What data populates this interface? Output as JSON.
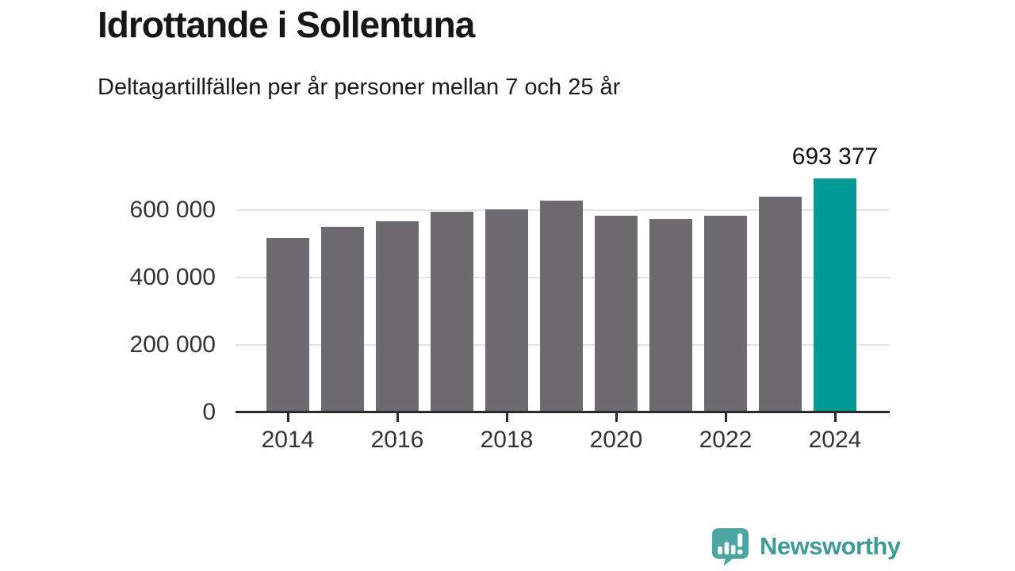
{
  "header": {
    "title": "Idrottande i Sollentuna",
    "subtitle": "Deltagartillfällen per år personer mellan 7 och 25 år"
  },
  "chart_data": {
    "type": "bar",
    "title": "Idrottande i Sollentuna",
    "subtitle": "Deltagartillfällen per år personer mellan 7 och 25 år",
    "categories": [
      "2014",
      "2015",
      "2016",
      "2017",
      "2018",
      "2019",
      "2020",
      "2021",
      "2022",
      "2023",
      "2024"
    ],
    "values": [
      516000,
      550000,
      565000,
      595000,
      602000,
      628000,
      583000,
      574000,
      583000,
      639000,
      693377
    ],
    "highlight": {
      "category": "2024",
      "value": 693377,
      "label": "693 377"
    },
    "y_axis": {
      "ticks": [
        {
          "value": 0,
          "label": "0"
        },
        {
          "value": 200000,
          "label": "200 000"
        },
        {
          "value": 400000,
          "label": "400 000"
        },
        {
          "value": 600000,
          "label": "600 000"
        }
      ],
      "range": [
        0,
        700000
      ]
    },
    "x_axis": {
      "tick_labels": [
        "2014",
        "2016",
        "2018",
        "2020",
        "2022",
        "2024"
      ]
    },
    "grid": true,
    "legend": "none",
    "colors": {
      "bar": "#6d6a70",
      "highlight": "#009a94",
      "gridline": "#e4e4e4",
      "axis": "#2b2b2b",
      "tick_text": "#333333",
      "annotation_text": "#111111"
    }
  },
  "footer": {
    "brand": "Newsworthy",
    "brand_color": "#3e9c96",
    "logo_icon": "newsworthy-bar-chart-bubble-icon",
    "logo_color": "#4ba5a0"
  }
}
